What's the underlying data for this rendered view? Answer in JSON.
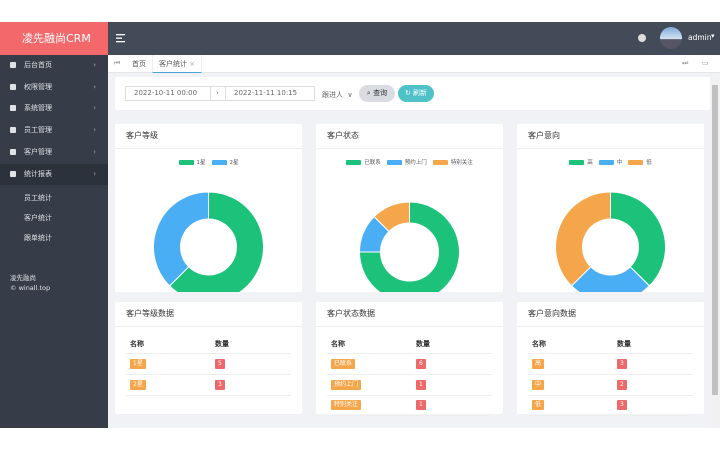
{
  "brand": "凌先融尚CRM",
  "user": "admin",
  "menu": [
    "后台首页",
    "权限管理",
    "系统管理",
    "员工管理",
    "客户管理",
    "统计报表"
  ],
  "submenu": [
    "员工统计",
    "客户统计",
    "跟单统计"
  ],
  "footer": [
    "凌先融尚",
    "© winall.top"
  ],
  "tabs": [
    "首页",
    "客户统计"
  ],
  "filter": {
    "start": "2022-10-11 00:00",
    "end": "2022-11-11 10:15",
    "follower": "跟进人",
    "query": "查询",
    "refresh": "刷新"
  },
  "panels": [
    {
      "chart_title": "客户等级",
      "table_title": "客户等级数据",
      "columns": [
        "名称",
        "数量"
      ],
      "rows": [
        [
          "1星",
          5
        ],
        [
          "2星",
          3
        ]
      ],
      "colors": [
        "#1dc27a",
        "#4aaef5"
      ]
    },
    {
      "chart_title": "客户状态",
      "table_title": "客户状态数据",
      "columns": [
        "名称",
        "数量"
      ],
      "rows": [
        [
          "已联系",
          6
        ],
        [
          "预约上门",
          1
        ],
        [
          "特别关注",
          1
        ]
      ],
      "colors": [
        "#1dc27a",
        "#4aaef5",
        "#f6a64a"
      ]
    },
    {
      "chart_title": "客户意向",
      "table_title": "客户意向数据",
      "columns": [
        "名称",
        "数量"
      ],
      "rows": [
        [
          "高",
          3
        ],
        [
          "中",
          2
        ],
        [
          "低",
          3
        ]
      ],
      "colors": [
        "#1dc27a",
        "#4aaef5",
        "#f6a64a"
      ]
    }
  ]
}
